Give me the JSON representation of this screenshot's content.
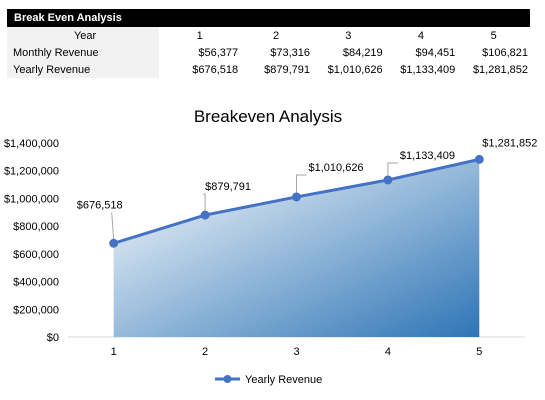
{
  "sheet": {
    "title": "Break Even Analysis",
    "rows": [
      {
        "label": "Year",
        "values": [
          "1",
          "2",
          "3",
          "4",
          "5"
        ]
      },
      {
        "label": "Monthly Revenue",
        "values": [
          "$56,377",
          "$73,316",
          "$84,219",
          "$94,451",
          "$106,821"
        ]
      },
      {
        "label": "Yearly Revenue",
        "values": [
          "$676,518",
          "$879,791",
          "$1,010,626",
          "$1,133,409",
          "$1,281,852"
        ]
      }
    ]
  },
  "chart_data": {
    "type": "area",
    "title": "Breakeven Analysis",
    "xlabel": "",
    "ylabel": "",
    "categories": [
      "1",
      "2",
      "3",
      "4",
      "5"
    ],
    "series": [
      {
        "name": "Yearly Revenue",
        "values": [
          676518,
          879791,
          1010626,
          1133409,
          1281852
        ],
        "data_labels": [
          "$676,518",
          "$879,791",
          "$1,010,626",
          "$1,133,409",
          "$1,281,852"
        ]
      }
    ],
    "yticks": [
      "$0",
      "$200,000",
      "$400,000",
      "$600,000",
      "$800,000",
      "$1,000,000",
      "$1,200,000",
      "$1,400,000"
    ],
    "ylim": [
      0,
      1400000
    ],
    "grid": false,
    "legend": "bottom",
    "colors": {
      "line": "#4472c4",
      "fill_dark": "#2e75b6",
      "fill_light": "#ffffff"
    }
  }
}
